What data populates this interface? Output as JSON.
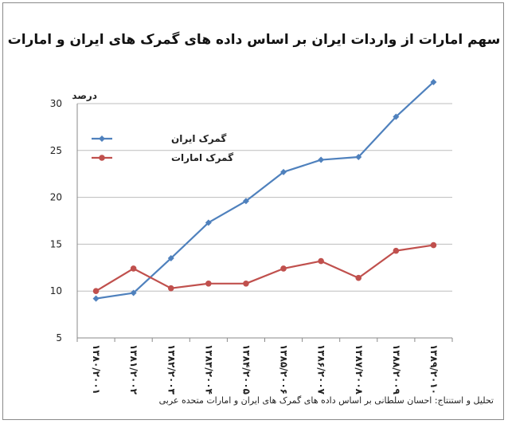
{
  "chart_data": {
    "type": "line",
    "title": "سهم امارات از واردات ایران بر اساس داده های گمرک های ایران و امارات",
    "ylabel": "درصد",
    "xlabel": "",
    "categories": [
      "۱۳۸۰/۲۰۰۱",
      "۱۳۸۱/۲۰۰۲",
      "۱۳۸۲/۲۰۰۳",
      "۱۳۸۳/۲۰۰۴",
      "۱۳۸۴/۲۰۰۵",
      "۱۳۸۵/۲۰۰۶",
      "۱۳۸۶/۲۰۰۷",
      "۱۳۸۷/۲۰۰۸",
      "۱۳۸۸/۲۰۰۹",
      "۱۳۸۹/۲۰۱۰"
    ],
    "ylim": [
      5,
      30
    ],
    "yticks": [
      "5",
      "10",
      "15",
      "20",
      "25",
      "30"
    ],
    "grid": true,
    "legend_position": "top-left",
    "series": [
      {
        "name": "گمرک ایران",
        "color": "#4f81bd",
        "values": [
          9.2,
          9.8,
          13.5,
          17.3,
          19.6,
          22.7,
          24.0,
          24.3,
          28.6,
          32.3
        ]
      },
      {
        "name": "گمرک امارات",
        "color": "#c0504d",
        "values": [
          10.0,
          12.4,
          10.3,
          10.8,
          10.8,
          12.4,
          13.2,
          11.4,
          14.3,
          14.9
        ]
      }
    ]
  },
  "footer": {
    "source": "تحلیل و استنتاج: احسان سلطانی بر اساس داده های گمرک های ایران و امارات متحده عربی"
  }
}
